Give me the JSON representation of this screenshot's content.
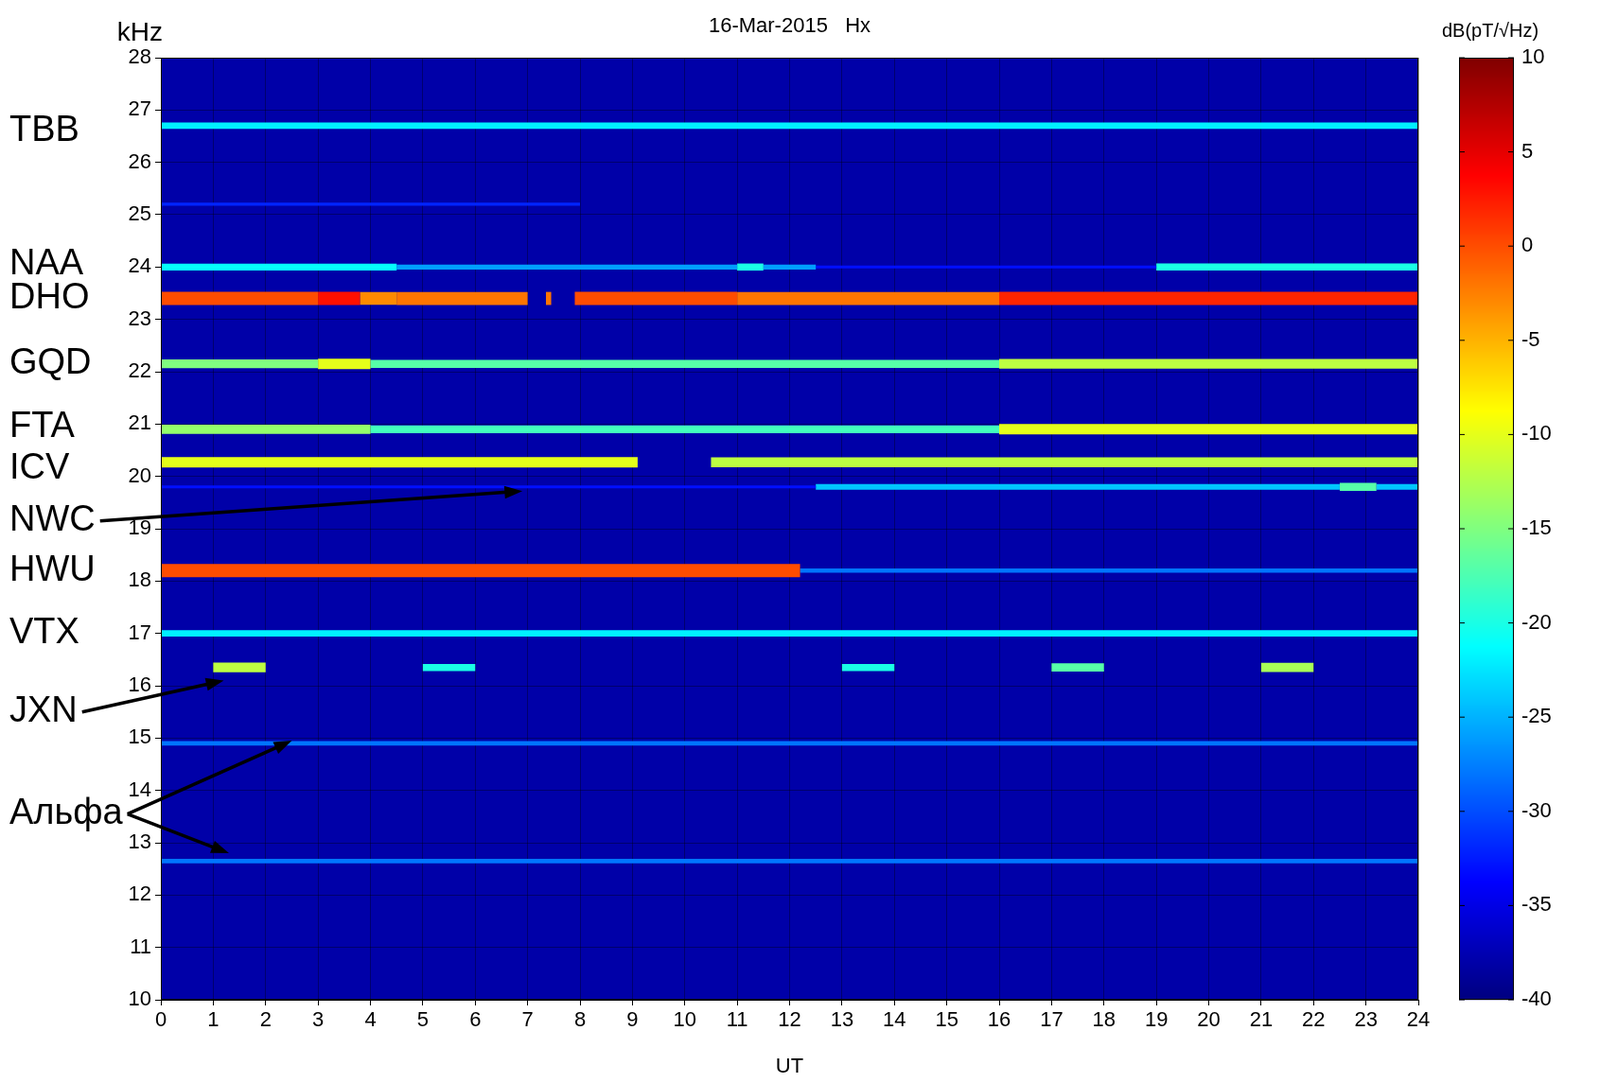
{
  "chart_data": {
    "type": "spectrogram",
    "title": "16-Mar-2015   Hx",
    "x_label": "UT",
    "y_label": "kHz",
    "xlim": [
      0,
      24
    ],
    "xticks": [
      0,
      1,
      2,
      3,
      4,
      5,
      6,
      7,
      8,
      9,
      10,
      11,
      12,
      13,
      14,
      15,
      16,
      17,
      18,
      19,
      20,
      21,
      22,
      23,
      24
    ],
    "ylim": [
      10,
      28
    ],
    "yticks": [
      10,
      11,
      12,
      13,
      14,
      15,
      16,
      17,
      18,
      19,
      20,
      21,
      22,
      23,
      24,
      25,
      26,
      27,
      28
    ],
    "grid": true,
    "colorbar": {
      "label": "dB(pT/√Hz)",
      "lim": [
        -40,
        10
      ],
      "ticks": [
        -40,
        -35,
        -30,
        -25,
        -20,
        -15,
        -10,
        -5,
        0,
        5,
        10
      ]
    },
    "background": -38,
    "series": [
      {
        "freq": 26.7,
        "segments": [
          [
            0,
            24,
            -22
          ]
        ]
      },
      {
        "freq": 25.2,
        "segments": [
          [
            0,
            8,
            -32
          ]
        ]
      },
      {
        "freq": 24.0,
        "segments": [
          [
            0,
            4.5,
            -21
          ],
          [
            4.5,
            11,
            -26
          ],
          [
            11,
            11.5,
            -20
          ],
          [
            11.5,
            12.5,
            -26
          ],
          [
            12.5,
            19,
            -33
          ],
          [
            19,
            24,
            -20
          ]
        ]
      },
      {
        "freq": 23.4,
        "segments": [
          [
            0,
            3,
            0
          ],
          [
            3,
            3.8,
            3
          ],
          [
            3.8,
            4.5,
            -3
          ],
          [
            4.5,
            7,
            -2
          ],
          [
            7.35,
            7.45,
            -2
          ],
          [
            7.9,
            11,
            0
          ],
          [
            11,
            16,
            -2
          ],
          [
            16,
            24,
            2
          ]
        ]
      },
      {
        "freq": 22.15,
        "segments": [
          [
            0,
            3,
            -15
          ],
          [
            3,
            4,
            -10
          ],
          [
            4,
            16,
            -17
          ],
          [
            16,
            24,
            -12
          ]
        ]
      },
      {
        "freq": 20.9,
        "segments": [
          [
            0,
            4,
            -14
          ],
          [
            4,
            16,
            -18
          ],
          [
            16,
            24,
            -10
          ]
        ]
      },
      {
        "freq": 20.27,
        "segments": [
          [
            0,
            9.1,
            -10
          ],
          [
            10.5,
            24,
            -12
          ]
        ]
      },
      {
        "freq": 19.8,
        "segments": [
          [
            0,
            12.5,
            -33
          ],
          [
            12.5,
            22.5,
            -24
          ],
          [
            22.5,
            23.2,
            -17
          ],
          [
            23.2,
            24,
            -24
          ]
        ]
      },
      {
        "freq": 18.2,
        "segments": [
          [
            0,
            12.2,
            0
          ],
          [
            12.2,
            24,
            -28
          ]
        ]
      },
      {
        "freq": 17.0,
        "segments": [
          [
            0,
            24,
            -22
          ]
        ]
      },
      {
        "freq": 16.35,
        "segments": [
          [
            1,
            2,
            -12
          ],
          [
            5,
            6,
            -20
          ],
          [
            13,
            14,
            -20
          ],
          [
            17,
            18,
            -17
          ],
          [
            21,
            22,
            -13
          ]
        ]
      },
      {
        "freq": 14.9,
        "segments": [
          [
            0,
            24,
            -28
          ]
        ]
      },
      {
        "freq": 12.65,
        "segments": [
          [
            0,
            24,
            -28
          ]
        ]
      }
    ],
    "annotations": [
      {
        "text": "TBB",
        "y": 26.6
      },
      {
        "text": "NAA",
        "y": 24.05
      },
      {
        "text": "DHO",
        "y": 23.4
      },
      {
        "text": "GQD",
        "y": 22.15
      },
      {
        "text": "FTA",
        "y": 20.95
      },
      {
        "text": "ICV",
        "y": 20.15
      },
      {
        "text": "NWC",
        "y": 19.15,
        "arrows": [
          {
            "x": 6.9,
            "y": 19.72
          }
        ]
      },
      {
        "text": "HWU",
        "y": 18.2
      },
      {
        "text": "VTX",
        "y": 17.0
      },
      {
        "text": "JXN",
        "y": 15.5,
        "arrows": [
          {
            "x": 1.2,
            "y": 16.1
          }
        ]
      },
      {
        "text": "Альфа",
        "y": 13.55,
        "arrows": [
          {
            "x": 2.5,
            "y": 14.95
          },
          {
            "x": 1.3,
            "y": 12.8
          }
        ]
      }
    ]
  }
}
